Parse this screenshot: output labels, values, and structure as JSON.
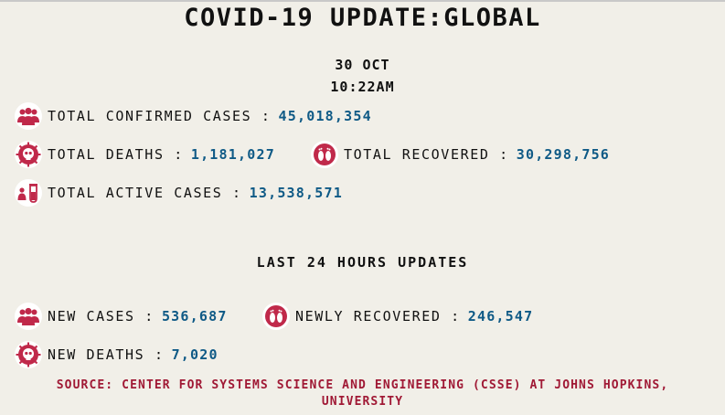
{
  "header": {
    "title": "COVID-19 UPDATE:GLOBAL",
    "date": "30 OCT",
    "time": "10:22AM"
  },
  "totals": {
    "confirmed_label": "TOTAL CONFIRMED CASES :",
    "confirmed_value": "45,018,354",
    "deaths_label": "TOTAL DEATHS :",
    "deaths_value": "1,181,027",
    "recovered_label": "TOTAL RECOVERED :",
    "recovered_value": "30,298,756",
    "active_label": "TOTAL ACTIVE CASES :",
    "active_value": "13,538,571"
  },
  "last24": {
    "heading": "LAST 24 HOURS UPDATES",
    "new_cases_label": "NEW CASES :",
    "new_cases_value": "536,687",
    "newly_recovered_label": "NEWLY RECOVERED :",
    "newly_recovered_value": "246,547",
    "new_deaths_label": "NEW DEATHS :",
    "new_deaths_value": "7,020"
  },
  "footer": {
    "source": "SOURCE: CENTER FOR SYSTEMS SCIENCE AND ENGINEERING (CSSE) AT JOHNS HOPKINS, UNIVERSITY"
  },
  "colors": {
    "background": "#f1efe8",
    "value": "#0f5a86",
    "accent": "#c0294a",
    "source": "#a01935"
  },
  "icons": [
    "people-group-icon",
    "virus-skull-icon",
    "footprints-icon",
    "test-tube-icon"
  ]
}
